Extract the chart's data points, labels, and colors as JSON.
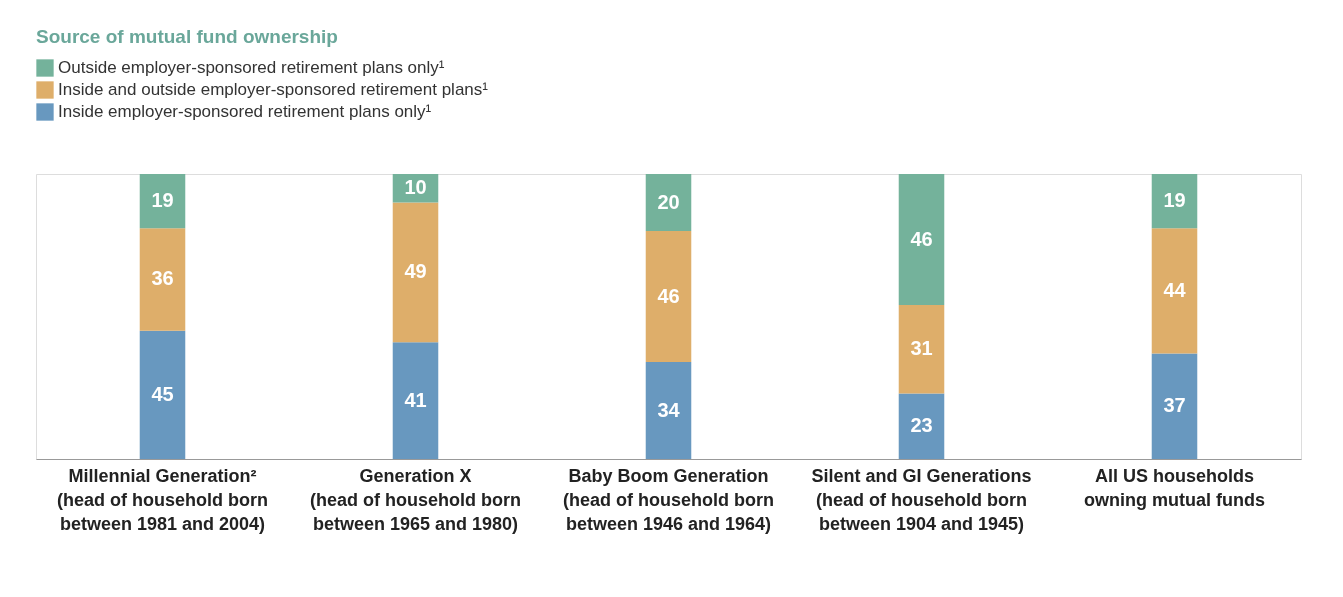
{
  "chart_data": {
    "type": "bar",
    "stacked": true,
    "title": "Source of mutual fund ownership",
    "categories": [
      "Millennial Generation²\n(head of household born\nbetween 1981 and 2004)",
      "Generation X\n(head of household born\nbetween 1965 and 1980)",
      "Baby Boom Generation\n(head of household born\nbetween 1946 and 1964)",
      "Silent and GI Generations\n(head of household born\nbetween 1904 and 1945)",
      "All US households\nowning mutual funds"
    ],
    "series": [
      {
        "name": "Inside employer-sponsored retirement plans only¹",
        "color": "#6898bf",
        "values": [
          45,
          41,
          34,
          23,
          37
        ]
      },
      {
        "name": "Inside and outside employer-sponsored retirement plans¹",
        "color": "#deae6a",
        "values": [
          36,
          49,
          46,
          31,
          44
        ]
      },
      {
        "name": "Outside employer-sponsored retirement plans only¹",
        "color": "#74b29b",
        "values": [
          19,
          10,
          20,
          46,
          19
        ]
      }
    ],
    "data_labels": true,
    "legend": "top left",
    "grid": false
  }
}
